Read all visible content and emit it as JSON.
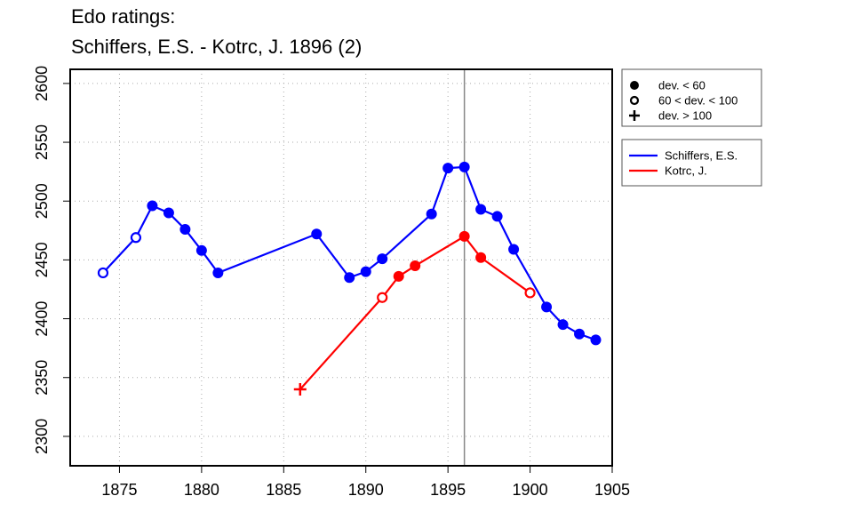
{
  "title_line1": "Edo ratings:",
  "title_line2": "Schiffers, E.S. - Kotrc, J. 1896 (2)",
  "chart_data": {
    "type": "line",
    "xlim": [
      1872,
      1905
    ],
    "ylim": [
      2275,
      2612
    ],
    "x_ticks": [
      1875,
      1880,
      1885,
      1890,
      1895,
      1900,
      1905
    ],
    "y_ticks": [
      2300,
      2350,
      2400,
      2450,
      2500,
      2550,
      2600
    ],
    "grid": true,
    "vline_x": 1896,
    "marker_legend": [
      {
        "symbol": "filled",
        "label": "dev. < 60"
      },
      {
        "symbol": "open",
        "label": "60 < dev. < 100"
      },
      {
        "symbol": "plus",
        "label": "dev. > 100"
      }
    ],
    "series": [
      {
        "name": "Schiffers, E.S.",
        "color": "#0000ff",
        "points": [
          {
            "x": 1874,
            "y": 2439,
            "marker": "open"
          },
          {
            "x": 1876,
            "y": 2469,
            "marker": "open"
          },
          {
            "x": 1877,
            "y": 2496,
            "marker": "filled"
          },
          {
            "x": 1878,
            "y": 2490,
            "marker": "filled"
          },
          {
            "x": 1879,
            "y": 2476,
            "marker": "filled"
          },
          {
            "x": 1880,
            "y": 2458,
            "marker": "filled"
          },
          {
            "x": 1881,
            "y": 2439,
            "marker": "filled"
          },
          {
            "x": 1887,
            "y": 2472,
            "marker": "filled"
          },
          {
            "x": 1889,
            "y": 2435,
            "marker": "filled"
          },
          {
            "x": 1890,
            "y": 2440,
            "marker": "filled"
          },
          {
            "x": 1891,
            "y": 2451,
            "marker": "filled"
          },
          {
            "x": 1894,
            "y": 2489,
            "marker": "filled"
          },
          {
            "x": 1895,
            "y": 2528,
            "marker": "filled"
          },
          {
            "x": 1896,
            "y": 2529,
            "marker": "filled"
          },
          {
            "x": 1897,
            "y": 2493,
            "marker": "filled"
          },
          {
            "x": 1898,
            "y": 2487,
            "marker": "filled"
          },
          {
            "x": 1899,
            "y": 2459,
            "marker": "filled"
          },
          {
            "x": 1901,
            "y": 2410,
            "marker": "filled"
          },
          {
            "x": 1902,
            "y": 2395,
            "marker": "filled"
          },
          {
            "x": 1903,
            "y": 2387,
            "marker": "filled"
          },
          {
            "x": 1904,
            "y": 2382,
            "marker": "filled"
          }
        ]
      },
      {
        "name": "Kotrc, J.",
        "color": "#ff0000",
        "points": [
          {
            "x": 1886,
            "y": 2340,
            "marker": "plus"
          },
          {
            "x": 1891,
            "y": 2418,
            "marker": "open"
          },
          {
            "x": 1892,
            "y": 2436,
            "marker": "filled"
          },
          {
            "x": 1893,
            "y": 2445,
            "marker": "filled"
          },
          {
            "x": 1896,
            "y": 2470,
            "marker": "filled"
          },
          {
            "x": 1897,
            "y": 2452,
            "marker": "filled"
          },
          {
            "x": 1900,
            "y": 2422,
            "marker": "open"
          }
        ]
      }
    ]
  }
}
